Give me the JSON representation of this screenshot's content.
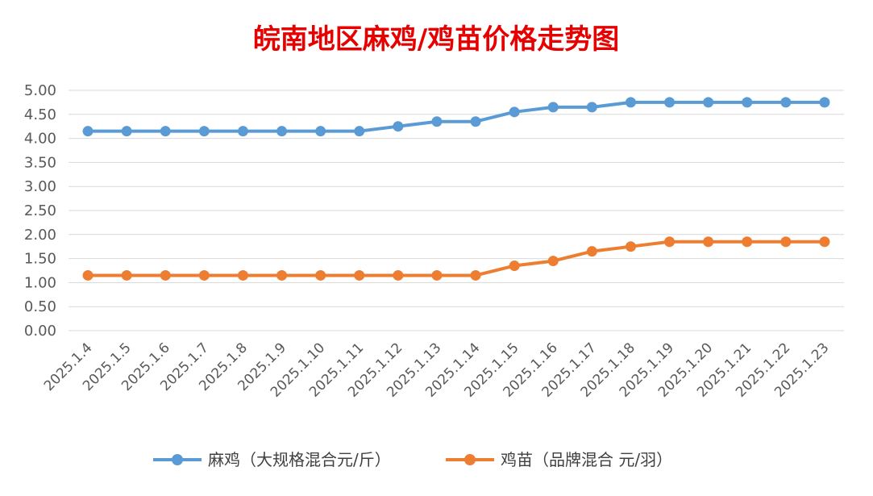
{
  "colors": {
    "title": "#e60000",
    "series_1": "#5b9bd5",
    "series_2": "#ed7d31",
    "grid": "#d9d9d9",
    "axis_text": "#595959"
  },
  "chart_data": {
    "type": "line",
    "title": "皖南地区麻鸡/鸡苗价格走势图",
    "xlabel": "",
    "ylabel": "",
    "x": [
      "2025.1.4",
      "2025.1.5",
      "2025.1.6",
      "2025.1.7",
      "2025.1.8",
      "2025.1.9",
      "2025.1.10",
      "2025.1.11",
      "2025.1.12",
      "2025.1.13",
      "2025.1.14",
      "2025.1.15",
      "2025.1.16",
      "2025.1.17",
      "2025.1.18",
      "2025.1.19",
      "2025.1.20",
      "2025.1.21",
      "2025.1.22",
      "2025.1.23"
    ],
    "yticks": [
      "5.00",
      "4.50",
      "4.00",
      "3.50",
      "3.00",
      "2.50",
      "2.00",
      "1.50",
      "1.00",
      "0.50",
      "0.00"
    ],
    "ylim": [
      0,
      5
    ],
    "grid": true,
    "legend_position": "bottom",
    "series": [
      {
        "name": "麻鸡（大规格混合元/斤）",
        "color": "#5b9bd5",
        "values": [
          4.15,
          4.15,
          4.15,
          4.15,
          4.15,
          4.15,
          4.15,
          4.15,
          4.25,
          4.35,
          4.35,
          4.55,
          4.65,
          4.65,
          4.75,
          4.75,
          4.75,
          4.75,
          4.75,
          4.75
        ]
      },
      {
        "name": "鸡苗（品牌混合 元/羽）",
        "color": "#ed7d31",
        "values": [
          1.15,
          1.15,
          1.15,
          1.15,
          1.15,
          1.15,
          1.15,
          1.15,
          1.15,
          1.15,
          1.15,
          1.35,
          1.45,
          1.65,
          1.75,
          1.85,
          1.85,
          1.85,
          1.85,
          1.85
        ]
      }
    ]
  }
}
